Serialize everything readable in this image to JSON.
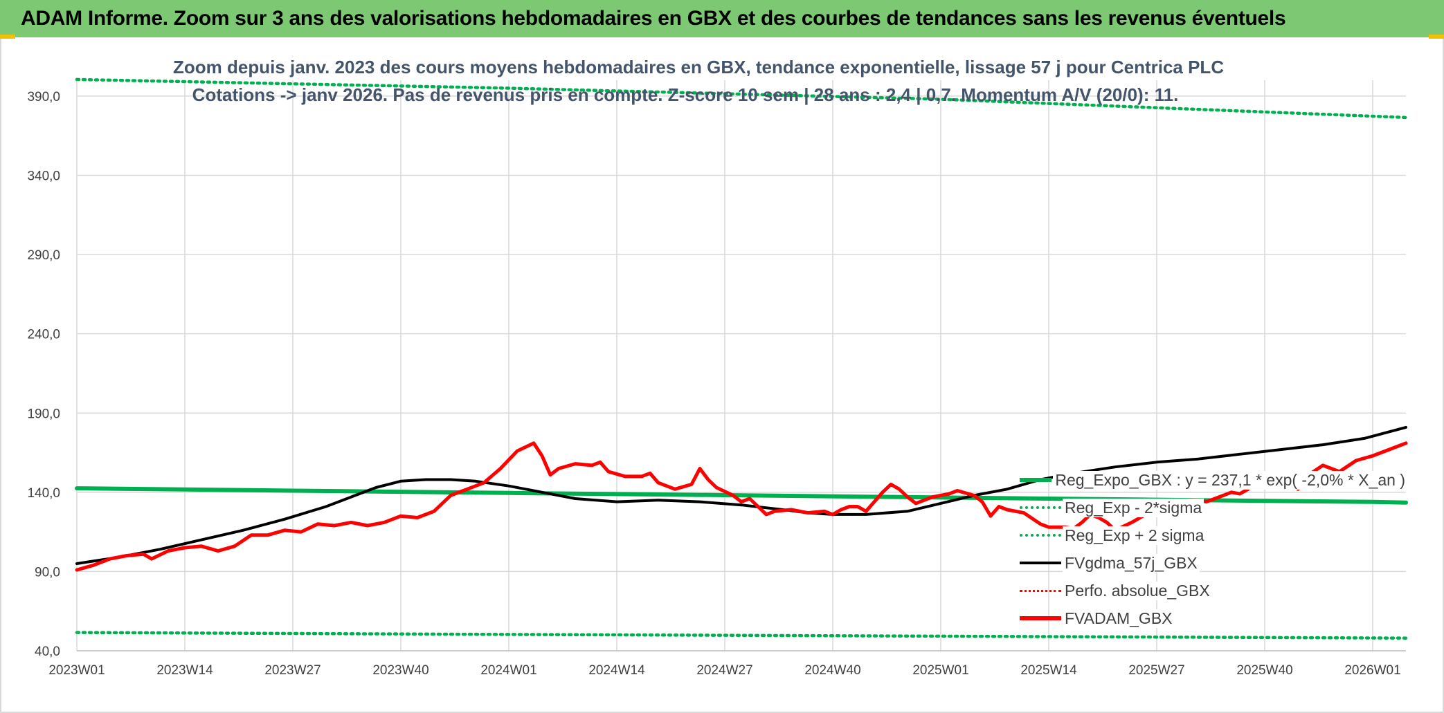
{
  "header": {
    "title": "ADAM Informe. Zoom sur 3 ans des valorisations hebdomadaires en GBX et des courbes de tendances sans les revenus éventuels"
  },
  "chart_data": {
    "type": "line",
    "title_line1": "Zoom depuis janv. 2023 des cours moyens hebdomadaires en GBX, tendance exponentielle, lissage 57 j pour Centrica PLC",
    "title_line2": "Cotations -> janv 2026. Pas de revenus pris en compte. Z-score 10 sem | 28 ans : 2,4 | 0,7. Momentum A/V (20/0): 11.",
    "y_ticks": [
      "390,0",
      "340,0",
      "290,0",
      "240,0",
      "190,0",
      "140,0",
      "90,0",
      "40,0"
    ],
    "y_tick_values": [
      390,
      340,
      290,
      240,
      190,
      140,
      90,
      40
    ],
    "ylim": [
      40,
      400
    ],
    "x_ticks": [
      "2023W01",
      "2023W14",
      "2023W27",
      "2023W40",
      "2024W01",
      "2024W14",
      "2024W27",
      "2024W40",
      "2025W01",
      "2025W14",
      "2025W27",
      "2025W40",
      "2026W01"
    ],
    "x_tick_weeks": [
      0,
      13,
      26,
      39,
      52,
      65,
      78,
      91,
      104,
      117,
      130,
      143,
      156
    ],
    "x_max_week": 160,
    "grid": true,
    "legend_position": "bottom-right",
    "colors": {
      "reg_expo": "#00b050",
      "sigma": "#00b050",
      "fvgdma": "#000000",
      "perfo": "#ff0000",
      "fvadam": "#ff0000",
      "title_bar": "#7dc872",
      "subtitle": "#44546a"
    },
    "legend": [
      {
        "name": "Reg_Expo_GBX : y = 237,1 * exp( -2,0% *  X_an )",
        "style": "solid-thick-green"
      },
      {
        "name": "Reg_Exp - 2*sigma",
        "style": "dotted-green"
      },
      {
        "name": "Reg_Exp + 2 sigma",
        "style": "dotted-green"
      },
      {
        "name": "FVgdma_57j_GBX",
        "style": "solid-black"
      },
      {
        "name": "Perfo. absolue_GBX",
        "style": "dotted-red"
      },
      {
        "name": "FVADAM_GBX",
        "style": "solid-thick-red"
      }
    ],
    "series": [
      {
        "name": "Reg_Expo_GBX",
        "points": [
          [
            0,
            142.5
          ],
          [
            26,
            141.0
          ],
          [
            52,
            139.6
          ],
          [
            78,
            138.2
          ],
          [
            104,
            136.7
          ],
          [
            130,
            135.3
          ],
          [
            156,
            133.9
          ],
          [
            160,
            133.5
          ]
        ]
      },
      {
        "name": "Reg_Exp - 2*sigma",
        "points": [
          [
            0,
            51.5
          ],
          [
            52,
            50.3
          ],
          [
            104,
            49.2
          ],
          [
            160,
            48.0
          ]
        ]
      },
      {
        "name": "Reg_Exp + 2 sigma",
        "points": [
          [
            0,
            400.5
          ],
          [
            52,
            395.0
          ],
          [
            104,
            388.0
          ],
          [
            160,
            376.5
          ]
        ]
      },
      {
        "name": "FVgdma_57j_GBX",
        "points": [
          [
            0,
            95
          ],
          [
            5,
            99
          ],
          [
            10,
            104
          ],
          [
            15,
            110
          ],
          [
            20,
            116
          ],
          [
            25,
            123
          ],
          [
            30,
            131
          ],
          [
            33,
            137
          ],
          [
            36,
            143
          ],
          [
            39,
            147
          ],
          [
            42,
            148
          ],
          [
            45,
            148
          ],
          [
            48,
            147
          ],
          [
            52,
            144
          ],
          [
            56,
            140
          ],
          [
            60,
            136
          ],
          [
            65,
            134
          ],
          [
            70,
            135
          ],
          [
            75,
            134
          ],
          [
            80,
            132
          ],
          [
            85,
            129
          ],
          [
            88,
            127
          ],
          [
            91,
            126
          ],
          [
            95,
            126
          ],
          [
            100,
            128
          ],
          [
            104,
            133
          ],
          [
            108,
            138
          ],
          [
            112,
            142
          ],
          [
            116,
            148
          ],
          [
            120,
            152
          ],
          [
            125,
            156
          ],
          [
            130,
            159
          ],
          [
            135,
            161
          ],
          [
            140,
            164
          ],
          [
            145,
            167
          ],
          [
            150,
            170
          ],
          [
            155,
            174
          ],
          [
            160,
            181
          ]
        ]
      },
      {
        "name": "FVADAM_GBX",
        "points": [
          [
            0,
            91
          ],
          [
            2,
            94
          ],
          [
            4,
            98
          ],
          [
            6,
            100
          ],
          [
            8,
            101
          ],
          [
            9,
            98
          ],
          [
            11,
            103
          ],
          [
            13,
            105
          ],
          [
            15,
            106
          ],
          [
            17,
            103
          ],
          [
            19,
            106
          ],
          [
            21,
            113
          ],
          [
            23,
            113
          ],
          [
            25,
            116
          ],
          [
            27,
            115
          ],
          [
            29,
            120
          ],
          [
            31,
            119
          ],
          [
            33,
            121
          ],
          [
            35,
            119
          ],
          [
            37,
            121
          ],
          [
            39,
            125
          ],
          [
            41,
            124
          ],
          [
            43,
            128
          ],
          [
            45,
            138
          ],
          [
            47,
            142
          ],
          [
            49,
            146
          ],
          [
            51,
            155
          ],
          [
            53,
            166
          ],
          [
            55,
            171
          ],
          [
            56,
            163
          ],
          [
            57,
            151
          ],
          [
            58,
            155
          ],
          [
            60,
            158
          ],
          [
            62,
            157
          ],
          [
            63,
            159
          ],
          [
            64,
            153
          ],
          [
            66,
            150
          ],
          [
            68,
            150
          ],
          [
            69,
            152
          ],
          [
            70,
            146
          ],
          [
            72,
            142
          ],
          [
            74,
            145
          ],
          [
            75,
            155
          ],
          [
            76,
            148
          ],
          [
            77,
            143
          ],
          [
            79,
            138
          ],
          [
            80,
            134
          ],
          [
            81,
            136
          ],
          [
            82,
            131
          ],
          [
            83,
            126
          ],
          [
            84,
            128
          ],
          [
            86,
            129
          ],
          [
            88,
            127
          ],
          [
            90,
            128
          ],
          [
            91,
            126
          ],
          [
            92,
            129
          ],
          [
            93,
            131
          ],
          [
            94,
            131
          ],
          [
            95,
            128
          ],
          [
            96,
            134
          ],
          [
            97,
            140
          ],
          [
            98,
            145
          ],
          [
            99,
            142
          ],
          [
            100,
            137
          ],
          [
            101,
            133
          ],
          [
            103,
            137
          ],
          [
            105,
            139
          ],
          [
            106,
            141
          ],
          [
            108,
            138
          ],
          [
            109,
            134
          ],
          [
            110,
            125
          ],
          [
            111,
            131
          ],
          [
            112,
            129
          ],
          [
            114,
            127
          ],
          [
            116,
            120
          ],
          [
            117,
            118
          ],
          [
            119,
            118
          ],
          [
            120,
            117
          ],
          [
            121,
            121
          ],
          [
            122,
            126
          ],
          [
            123,
            124
          ],
          [
            124,
            121
          ],
          [
            125,
            116
          ],
          [
            127,
            121
          ],
          [
            129,
            127
          ],
          [
            130,
            129
          ],
          [
            131,
            129
          ],
          [
            132,
            128
          ],
          [
            133,
            130
          ],
          [
            134,
            135
          ],
          [
            135,
            135
          ],
          [
            136,
            134
          ],
          [
            137,
            136
          ],
          [
            138,
            138
          ],
          [
            139,
            140
          ],
          [
            140,
            139
          ],
          [
            141,
            142
          ],
          [
            142,
            150
          ],
          [
            143,
            148
          ],
          [
            144,
            145
          ],
          [
            145,
            148
          ],
          [
            146,
            151
          ],
          [
            147,
            142
          ],
          [
            148,
            150
          ],
          [
            150,
            157
          ],
          [
            152,
            153
          ],
          [
            154,
            160
          ],
          [
            156,
            163
          ],
          [
            158,
            167
          ],
          [
            160,
            171
          ]
        ]
      }
    ]
  }
}
